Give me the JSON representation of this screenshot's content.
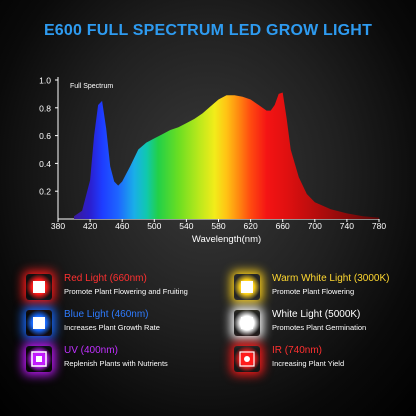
{
  "title": "E600 FULL SPECTRUM LED GROW LIGHT",
  "chart_data": {
    "type": "area",
    "title": "Full Spectrum",
    "xlabel": "Wavelength(nm)",
    "ylabel": "",
    "xlim": [
      380,
      780
    ],
    "ylim": [
      0,
      1.0
    ],
    "x_ticks": [
      380,
      420,
      460,
      500,
      540,
      580,
      620,
      660,
      700,
      740,
      780
    ],
    "y_ticks": [
      0.2,
      0.4,
      0.6,
      0.8,
      1.0
    ],
    "y_tick_labels": [
      "0.2",
      "0.4",
      "0.6",
      "0.8",
      "1.0"
    ],
    "grid": false,
    "x": [
      400,
      410,
      420,
      425,
      430,
      435,
      440,
      445,
      450,
      455,
      460,
      470,
      480,
      490,
      500,
      510,
      520,
      530,
      540,
      550,
      560,
      570,
      580,
      590,
      600,
      610,
      620,
      630,
      640,
      645,
      650,
      655,
      660,
      665,
      670,
      680,
      690,
      700,
      720,
      740,
      760,
      780
    ],
    "y": [
      0.02,
      0.06,
      0.28,
      0.6,
      0.82,
      0.85,
      0.65,
      0.38,
      0.27,
      0.24,
      0.27,
      0.38,
      0.5,
      0.55,
      0.58,
      0.61,
      0.64,
      0.66,
      0.69,
      0.72,
      0.76,
      0.81,
      0.86,
      0.89,
      0.89,
      0.88,
      0.86,
      0.82,
      0.78,
      0.78,
      0.82,
      0.9,
      0.91,
      0.72,
      0.5,
      0.3,
      0.18,
      0.12,
      0.07,
      0.04,
      0.02,
      0.01
    ]
  },
  "legend": [
    {
      "title": "Red Light (660nm)",
      "desc": "Promote Plant Flowering and Fruiting",
      "color": "#ff1a1a",
      "icon": "red-led-icon"
    },
    {
      "title": "Warm White Light (3000K)",
      "desc": "Promote Plant Flowering",
      "color": "#ffd21a",
      "icon": "warm-white-led-icon"
    },
    {
      "title": "Blue Light (460nm)",
      "desc": "Increases Plant Growth Rate",
      "color": "#1a6bff",
      "icon": "blue-led-icon"
    },
    {
      "title": "White Light (5000K)",
      "desc": "Promotes Plant Germination",
      "color": "#ffffff",
      "icon": "white-led-icon"
    },
    {
      "title": "UV (400nm)",
      "desc": "Replenish Plants with Nutrients",
      "color": "#c21aff",
      "icon": "uv-led-icon"
    },
    {
      "title": "IR (740nm)",
      "desc": "Increasing Plant Yield",
      "color": "#ff1a1a",
      "icon": "ir-led-icon"
    }
  ],
  "colors": {
    "title": "#2e9bf0",
    "red": "#ff3030",
    "warm_white": "#ffd830",
    "blue": "#2e7bff",
    "white": "#ffffff",
    "uv": "#c030ff",
    "ir": "#ff3030"
  }
}
